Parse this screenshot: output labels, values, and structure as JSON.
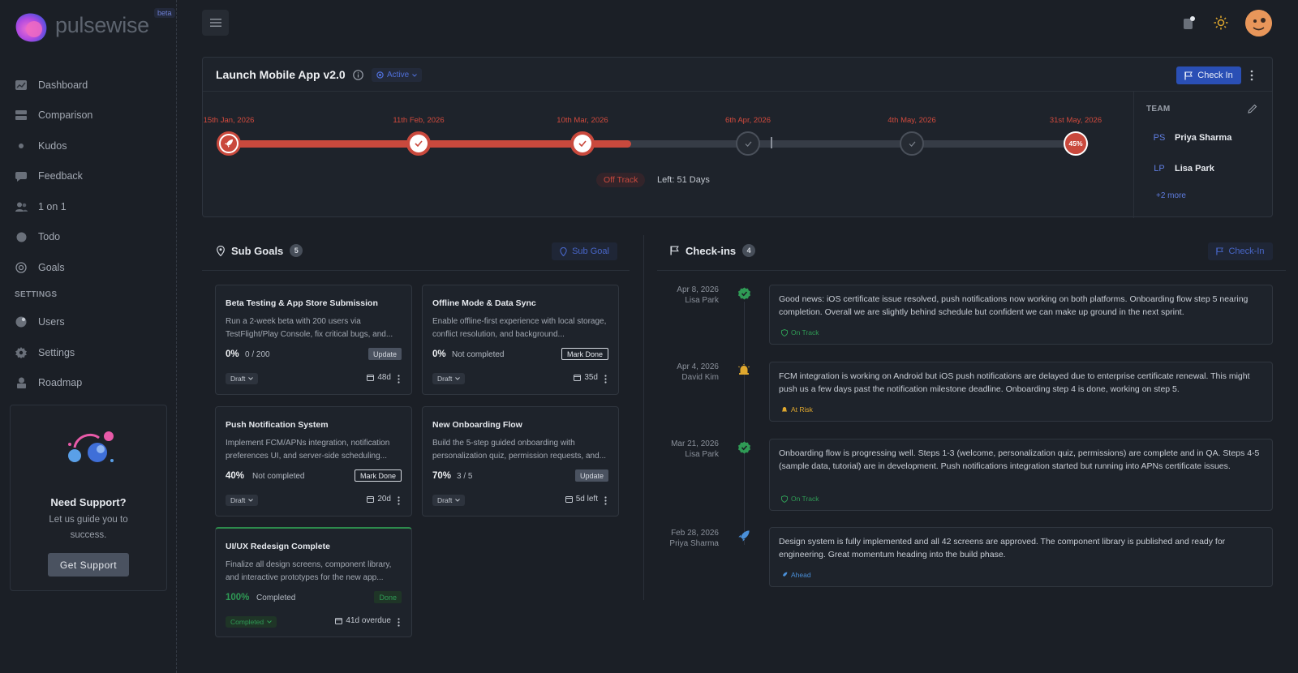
{
  "brand": {
    "name": "pulsewise",
    "badge": "beta"
  },
  "sidebar": {
    "items": [
      {
        "label": "Dashboard",
        "icon": "dashboard-icon"
      },
      {
        "label": "Comparison",
        "icon": "comparison-icon"
      },
      {
        "label": "Kudos",
        "icon": "kudos-icon"
      },
      {
        "label": "Feedback",
        "icon": "feedback-icon"
      },
      {
        "label": "1 on 1",
        "icon": "users-pair-icon"
      },
      {
        "label": "Todo",
        "icon": "todo-icon"
      },
      {
        "label": "Goals",
        "icon": "target-icon"
      }
    ],
    "settings_label": "SETTINGS",
    "settings_items": [
      {
        "label": "Users",
        "icon": "users-icon"
      },
      {
        "label": "Settings",
        "icon": "gear-icon"
      },
      {
        "label": "Roadmap",
        "icon": "roadmap-icon"
      }
    ],
    "support": {
      "title": "Need Support?",
      "text": "Let us guide you to success.",
      "button": "Get Support"
    }
  },
  "goal": {
    "title": "Launch Mobile App v2.0",
    "status": "Active",
    "checkin_label": "Check In",
    "timeline": {
      "dates": [
        "15th Jan, 2026",
        "11th Feb, 2026",
        "10th Mar, 2026",
        "6th Apr, 2026",
        "4th May, 2026",
        "31st May, 2026"
      ],
      "end_percent": "45%",
      "progress": 0.45
    },
    "track_status": "Off Track",
    "days_left": "Left: 51 Days",
    "team": {
      "title": "TEAM",
      "members": [
        {
          "initials": "PS",
          "name": "Priya Sharma"
        },
        {
          "initials": "LP",
          "name": "Lisa Park"
        }
      ],
      "more": "+2 more"
    }
  },
  "subgoals": {
    "title": "Sub Goals",
    "count": "5",
    "add_label": "Sub Goal",
    "cards": [
      {
        "title": "Beta Testing & App Store Submission",
        "desc": "Run a 2-week beta with 200 users via TestFlight/Play Console, fix critical bugs, and...",
        "pct": "0%",
        "progress": "0 / 200",
        "action": "Update",
        "state": "Draft",
        "due": "48d"
      },
      {
        "title": "Offline Mode & Data Sync",
        "desc": "Enable offline-first experience with local storage, conflict resolution, and background...",
        "pct": "0%",
        "progress": "Not completed",
        "action": "Mark Done",
        "state": "Draft",
        "due": "35d"
      },
      {
        "title": "Push Notification System",
        "desc": "Implement FCM/APNs integration, notification preferences UI, and server-side scheduling...",
        "pct": "40%",
        "progress": "Not completed",
        "action": "Mark Done",
        "state": "Draft",
        "due": "20d"
      },
      {
        "title": "New Onboarding Flow",
        "desc": "Build the 5-step guided onboarding with personalization quiz, permission requests, and...",
        "pct": "70%",
        "progress": "3 / 5",
        "action": "Update",
        "state": "Draft",
        "due": "5d left"
      },
      {
        "title": "UI/UX Redesign Complete",
        "desc": "Finalize all design screens, component library, and interactive prototypes for the new app...",
        "pct": "100%",
        "progress": "Completed",
        "action": "Done",
        "state": "Completed",
        "due": "41d overdue"
      }
    ]
  },
  "checkins": {
    "title": "Check-ins",
    "count": "4",
    "add_label": "Check-In",
    "entries": [
      {
        "date": "Apr 8, 2026",
        "author": "Lisa Park",
        "text": "Good news: iOS certificate issue resolved, push notifications now working on both platforms. Onboarding flow step 5 nearing completion. Overall we are slightly behind schedule but confident we can make up ground in the next sprint.",
        "status": "On Track",
        "color": "#2f9a55"
      },
      {
        "date": "Apr 4, 2026",
        "author": "David Kim",
        "text": "FCM integration is working on Android but iOS push notifications are delayed due to enterprise certificate renewal. This might push us a few days past the notification milestone deadline. Onboarding step 4 is done, working on step 5.",
        "status": "At Risk",
        "color": "#e0a82e"
      },
      {
        "date": "Mar 21, 2026",
        "author": "Lisa Park",
        "text": "Onboarding flow is progressing well. Steps 1-3 (welcome, personalization quiz, permissions) are complete and in QA. Steps 4-5 (sample data, tutorial) are in development. Push notifications integration started but running into APNs certificate issues.",
        "status": "On Track",
        "color": "#2f9a55"
      },
      {
        "date": "Feb 28, 2026",
        "author": "Priya Sharma",
        "text": "Design system is fully implemented and all 42 screens are approved. The component library is published and ready for engineering. Great momentum heading into the build phase.",
        "status": "Ahead",
        "color": "#4a8fd8"
      }
    ]
  }
}
